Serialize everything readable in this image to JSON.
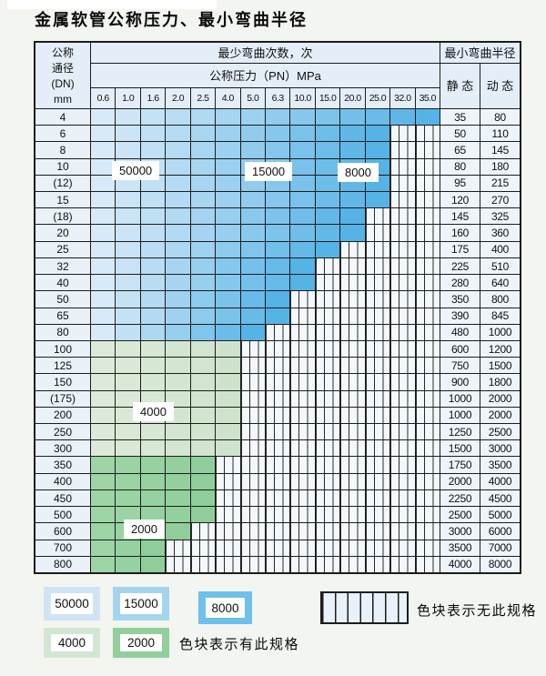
{
  "title": "金属软管公称压力、最小弯曲半径",
  "table": {
    "corner_lines": [
      "公称",
      "通径",
      "(DN)",
      "mm"
    ],
    "bend_times_header": "最少弯曲次数，次",
    "pressure_header": "公称压力（PN）MPa",
    "pressures": [
      "0.6",
      "1.0",
      "1.6",
      "2.0",
      "2.5",
      "4.0",
      "5.0",
      "6.3",
      "10.0",
      "15.0",
      "20.0",
      "25.0",
      "32.0",
      "35.0"
    ],
    "radius_header": "最小弯曲半径",
    "static_label": "静 态",
    "dynamic_label": "动 态",
    "rows": [
      {
        "dn": "4",
        "colored": 14,
        "band": "blue",
        "static": "35",
        "dynamic": "80"
      },
      {
        "dn": "6",
        "colored": 12,
        "band": "blue",
        "static": "50",
        "dynamic": "110"
      },
      {
        "dn": "8",
        "colored": 12,
        "band": "blue",
        "static": "65",
        "dynamic": "145"
      },
      {
        "dn": "10",
        "colored": 12,
        "band": "blue",
        "static": "80",
        "dynamic": "180"
      },
      {
        "dn": "(12)",
        "colored": 12,
        "band": "blue",
        "static": "95",
        "dynamic": "215"
      },
      {
        "dn": "15",
        "colored": 12,
        "band": "blue",
        "static": "120",
        "dynamic": "270"
      },
      {
        "dn": "(18)",
        "colored": 11,
        "band": "blue",
        "static": "145",
        "dynamic": "325"
      },
      {
        "dn": "20",
        "colored": 11,
        "band": "blue",
        "static": "160",
        "dynamic": "360"
      },
      {
        "dn": "25",
        "colored": 10,
        "band": "blue",
        "static": "175",
        "dynamic": "400"
      },
      {
        "dn": "32",
        "colored": 9,
        "band": "blue",
        "static": "225",
        "dynamic": "510"
      },
      {
        "dn": "40",
        "colored": 9,
        "band": "blue",
        "static": "280",
        "dynamic": "640"
      },
      {
        "dn": "50",
        "colored": 8,
        "band": "blue",
        "static": "350",
        "dynamic": "800"
      },
      {
        "dn": "65",
        "colored": 8,
        "band": "blue",
        "static": "390",
        "dynamic": "845"
      },
      {
        "dn": "80",
        "colored": 7,
        "band": "blue",
        "static": "480",
        "dynamic": "1000"
      },
      {
        "dn": "100",
        "colored": 6,
        "band": "green4000",
        "static": "600",
        "dynamic": "1200"
      },
      {
        "dn": "125",
        "colored": 6,
        "band": "green4000",
        "static": "750",
        "dynamic": "1500"
      },
      {
        "dn": "150",
        "colored": 6,
        "band": "green4000",
        "static": "900",
        "dynamic": "1800"
      },
      {
        "dn": "(175)",
        "colored": 6,
        "band": "green4000",
        "static": "1000",
        "dynamic": "2000"
      },
      {
        "dn": "200",
        "colored": 6,
        "band": "green4000",
        "static": "1000",
        "dynamic": "2000"
      },
      {
        "dn": "250",
        "colored": 6,
        "band": "green4000",
        "static": "1250",
        "dynamic": "2500"
      },
      {
        "dn": "300",
        "colored": 6,
        "band": "green4000",
        "static": "1500",
        "dynamic": "3000"
      },
      {
        "dn": "350",
        "colored": 5,
        "band": "green2000",
        "static": "1750",
        "dynamic": "3500"
      },
      {
        "dn": "400",
        "colored": 5,
        "band": "green2000",
        "static": "2000",
        "dynamic": "4000"
      },
      {
        "dn": "450",
        "colored": 5,
        "band": "green2000",
        "static": "2250",
        "dynamic": "4500"
      },
      {
        "dn": "500",
        "colored": 5,
        "band": "green2000",
        "static": "2500",
        "dynamic": "5000"
      },
      {
        "dn": "600",
        "colored": 4,
        "band": "green2000",
        "static": "3000",
        "dynamic": "6000"
      },
      {
        "dn": "700",
        "colored": 3,
        "band": "green2000",
        "static": "3500",
        "dynamic": "7000"
      },
      {
        "dn": "800",
        "colored": 3,
        "band": "green2000",
        "static": "4000",
        "dynamic": "8000"
      }
    ],
    "annotations": [
      {
        "text": "50000"
      },
      {
        "text": "15000"
      },
      {
        "text": "8000"
      },
      {
        "text": "4000"
      },
      {
        "text": "2000"
      }
    ]
  },
  "legend": {
    "available": [
      {
        "value": "50000",
        "color": "#cfe4f5"
      },
      {
        "value": "15000",
        "color": "#a5d4ef"
      },
      {
        "value": "8000",
        "color": "#6fc0eb"
      },
      {
        "value": "4000",
        "color": "#d2e7d2"
      },
      {
        "value": "2000",
        "color": "#92cf9d"
      }
    ],
    "available_note": "色块表示有此规格",
    "unavailable_note": "色块表示无此规格"
  },
  "colors": {
    "blue_light": "#d8eaf8",
    "blue_dark": "#55b3e6",
    "green4000_light": "#dcebd9",
    "green4000_dark": "#cfe3cc",
    "green2000_light": "#9dd5a7",
    "green2000_dark": "#8fce9b",
    "grid": "#1c1c1c",
    "header_bg": "#e4eef8",
    "page_bg": "#f3f6f0"
  }
}
